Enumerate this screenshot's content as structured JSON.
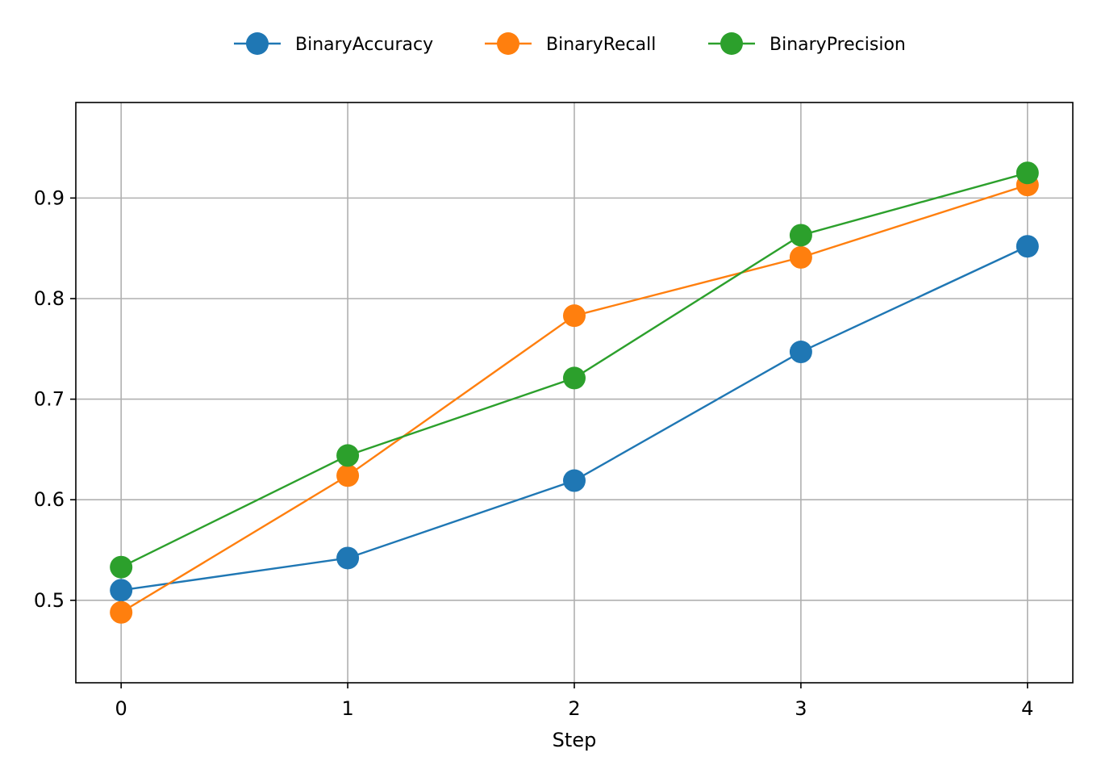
{
  "chart_data": {
    "type": "line",
    "title": "",
    "xlabel": "Step",
    "ylabel": "",
    "x": [
      0,
      1,
      2,
      3,
      4
    ],
    "xlim": [
      -0.2,
      4.2
    ],
    "ylim": [
      0.418,
      0.995
    ],
    "xticks": [
      0,
      1,
      2,
      3,
      4
    ],
    "yticks": [
      0.5,
      0.6,
      0.7,
      0.8,
      0.9
    ],
    "xtick_labels": [
      "0",
      "1",
      "2",
      "3",
      "4"
    ],
    "ytick_labels": [
      "0.5",
      "0.6",
      "0.7",
      "0.8",
      "0.9"
    ],
    "grid": true,
    "legend_position": "top-center",
    "series": [
      {
        "name": "BinaryAccuracy",
        "color": "#1f77b4",
        "values": [
          0.51,
          0.542,
          0.619,
          0.747,
          0.852
        ]
      },
      {
        "name": "BinaryRecall",
        "color": "#ff7f0e",
        "values": [
          0.488,
          0.624,
          0.783,
          0.841,
          0.913
        ]
      },
      {
        "name": "BinaryPrecision",
        "color": "#2ca02c",
        "values": [
          0.533,
          0.644,
          0.721,
          0.863,
          0.925
        ]
      }
    ]
  }
}
